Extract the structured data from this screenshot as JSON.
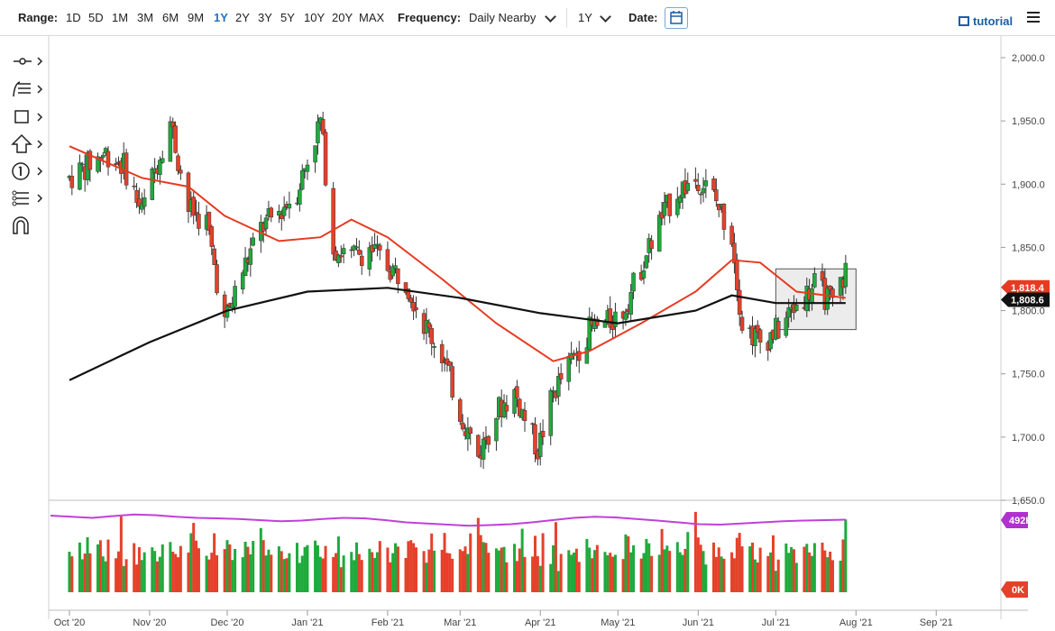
{
  "toolbar": {
    "range_label": "Range:",
    "ranges": [
      "1D",
      "5D",
      "1M",
      "3M",
      "6M",
      "9M",
      "1Y",
      "2Y",
      "3Y",
      "5Y",
      "10Y",
      "20Y",
      "MAX"
    ],
    "active_range": "1Y",
    "frequency_label": "Frequency:",
    "frequency_value": "Daily Nearby",
    "period_value": "1Y",
    "date_label": "Date:",
    "tutorial_label": "tutorial"
  },
  "left_tools": [
    "crosshair-icon",
    "fibonacci-icon",
    "rectangle-icon",
    "arrow-up-icon",
    "number-one-icon",
    "node-tree-icon",
    "magnet-icon"
  ],
  "colors": {
    "up": "#1faa3c",
    "down": "#e5412a",
    "ma_red": "#e63b22",
    "ma_black": "#111111",
    "volume_avg": "#c040d8",
    "volume_badge": "#b030d0"
  },
  "chart_data": {
    "type": "candlestick",
    "title": "",
    "y_ticks": [
      "2,000.0",
      "1,950.0",
      "1,900.0",
      "1,850.0",
      "1,800.0",
      "1,750.0",
      "1,700.0",
      "1,650.0"
    ],
    "ylim": [
      1650,
      2000
    ],
    "x_ticks": [
      "Oct '20",
      "Nov '20",
      "Dec '20",
      "Jan '21",
      "Feb '21",
      "Mar '21",
      "Apr '21",
      "May '21",
      "Jun '21",
      "Jul '21",
      "Aug '21",
      "Sep '21"
    ],
    "close_points": [
      [
        "2020-10-01",
        1905
      ],
      [
        "2020-10-08",
        1915
      ],
      [
        "2020-10-15",
        1925
      ],
      [
        "2020-10-22",
        1915
      ],
      [
        "2020-10-29",
        1878
      ],
      [
        "2020-11-05",
        1925
      ],
      [
        "2020-11-09",
        1950
      ],
      [
        "2020-11-16",
        1880
      ],
      [
        "2020-11-23",
        1870
      ],
      [
        "2020-11-30",
        1790
      ],
      [
        "2020-12-07",
        1832
      ],
      [
        "2020-12-14",
        1865
      ],
      [
        "2020-12-21",
        1878
      ],
      [
        "2020-12-28",
        1895
      ],
      [
        "2021-01-06",
        1950
      ],
      [
        "2021-01-11",
        1850
      ],
      [
        "2021-01-18",
        1842
      ],
      [
        "2021-01-25",
        1850
      ],
      [
        "2021-02-01",
        1835
      ],
      [
        "2021-02-08",
        1825
      ],
      [
        "2021-02-15",
        1790
      ],
      [
        "2021-02-22",
        1765
      ],
      [
        "2021-03-01",
        1720
      ],
      [
        "2021-03-08",
        1685
      ],
      [
        "2021-03-15",
        1720
      ],
      [
        "2021-03-22",
        1735
      ],
      [
        "2021-03-31",
        1690
      ],
      [
        "2021-04-06",
        1735
      ],
      [
        "2021-04-13",
        1760
      ],
      [
        "2021-04-20",
        1785
      ],
      [
        "2021-04-27",
        1790
      ],
      [
        "2021-05-03",
        1800
      ],
      [
        "2021-05-10",
        1835
      ],
      [
        "2021-05-17",
        1870
      ],
      [
        "2021-05-24",
        1895
      ],
      [
        "2021-06-01",
        1905
      ],
      [
        "2021-06-07",
        1890
      ],
      [
        "2021-06-14",
        1860
      ],
      [
        "2021-06-18",
        1790
      ],
      [
        "2021-06-25",
        1775
      ],
      [
        "2021-07-02",
        1785
      ],
      [
        "2021-07-09",
        1805
      ],
      [
        "2021-07-16",
        1820
      ],
      [
        "2021-07-23",
        1805
      ],
      [
        "2021-07-28",
        1832
      ]
    ],
    "ma_red_points": [
      [
        "2020-10-01",
        1930
      ],
      [
        "2020-10-29",
        1905
      ],
      [
        "2020-11-16",
        1898
      ],
      [
        "2020-11-30",
        1875
      ],
      [
        "2020-12-21",
        1855
      ],
      [
        "2021-01-06",
        1858
      ],
      [
        "2021-01-18",
        1872
      ],
      [
        "2021-02-01",
        1858
      ],
      [
        "2021-02-22",
        1825
      ],
      [
        "2021-03-15",
        1790
      ],
      [
        "2021-04-06",
        1760
      ],
      [
        "2021-04-20",
        1768
      ],
      [
        "2021-05-10",
        1790
      ],
      [
        "2021-05-31",
        1815
      ],
      [
        "2021-06-14",
        1840
      ],
      [
        "2021-06-25",
        1838
      ],
      [
        "2021-07-09",
        1815
      ],
      [
        "2021-07-28",
        1810
      ]
    ],
    "ma_black_points": [
      [
        "2020-10-01",
        1745
      ],
      [
        "2020-11-01",
        1775
      ],
      [
        "2020-12-01",
        1800
      ],
      [
        "2021-01-01",
        1815
      ],
      [
        "2021-02-01",
        1818
      ],
      [
        "2021-03-01",
        1810
      ],
      [
        "2021-04-01",
        1798
      ],
      [
        "2021-05-01",
        1790
      ],
      [
        "2021-05-31",
        1800
      ],
      [
        "2021-06-14",
        1812
      ],
      [
        "2021-07-01",
        1806
      ],
      [
        "2021-07-28",
        1806
      ]
    ],
    "highlight_box": {
      "from": "2021-07-01",
      "to": "2021-08-01",
      "low": 1785,
      "high": 1833
    },
    "last_price_labels": [
      {
        "label": "1,818.4",
        "color": "red"
      },
      {
        "label": "1,808.6",
        "color": "black"
      }
    ],
    "volume": {
      "ticks": [
        "492K",
        "0K"
      ],
      "max": 800,
      "bars": [
        50,
        45,
        60,
        40,
        55,
        65,
        48,
        52,
        70,
        45,
        38,
        60,
        42,
        55,
        80,
        30,
        45,
        50,
        40,
        55,
        48,
        42,
        65,
        58,
        45,
        50,
        60,
        55,
        45,
        40,
        52,
        48,
        45,
        60,
        75,
        55,
        50,
        45,
        40,
        55,
        60,
        42,
        50,
        65,
        58,
        48,
        45,
        52,
        60,
        55,
        48,
        70,
        85,
        60,
        52,
        55,
        40,
        58,
        45,
        48
      ],
      "avg": [
        500,
        495,
        490,
        498,
        505,
        502,
        495,
        490,
        488,
        485,
        480,
        475,
        478,
        485,
        490,
        488,
        480,
        470,
        465,
        460,
        455,
        458,
        462,
        470,
        480,
        490,
        495,
        492,
        485,
        478,
        470,
        462,
        460,
        465,
        470,
        475,
        478,
        480,
        482
      ]
    }
  }
}
